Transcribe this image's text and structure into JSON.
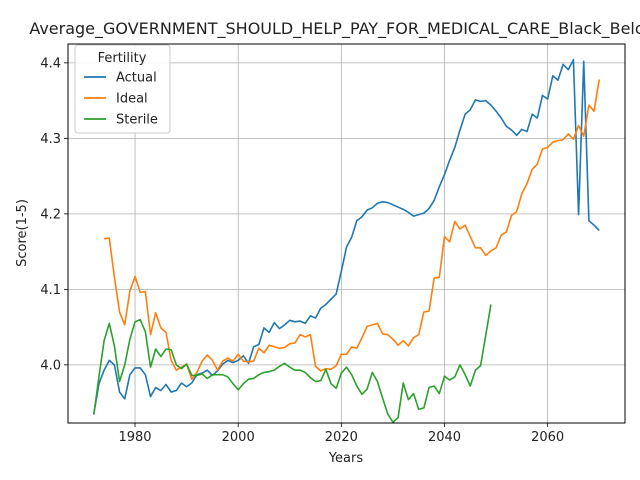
{
  "chart_data": {
    "type": "line",
    "title": "Average_GOVERNMENT_SHOULD_HELP_PAY_FOR_MEDICAL_CARE_Black_Below_A",
    "xlabel": "Years",
    "ylabel": "Score(1-5)",
    "xlim": [
      1967,
      2075
    ],
    "ylim": [
      3.923,
      4.425
    ],
    "xticks": [
      1980,
      2000,
      2020,
      2040,
      2060
    ],
    "yticks": [
      4.0,
      4.1,
      4.2,
      4.3,
      4.4
    ],
    "xtick_labels": [
      "1980",
      "2000",
      "2020",
      "2040",
      "2060"
    ],
    "ytick_labels": [
      "4.0",
      "4.1",
      "4.2",
      "4.3",
      "4.4"
    ],
    "grid": true,
    "legend": {
      "title": "Fertility",
      "position": "top-left"
    },
    "series": [
      {
        "name": "Actual",
        "color": "#1f77b4",
        "x": [
          1972,
          1973,
          1974,
          1975,
          1976,
          1977,
          1978,
          1979,
          1980,
          1981,
          1982,
          1983,
          1984,
          1985,
          1986,
          1987,
          1988,
          1989,
          1990,
          1991,
          1992,
          1993,
          1994,
          1995,
          1996,
          1997,
          1998,
          1999,
          2000,
          2001,
          2002,
          2003,
          2004,
          2005,
          2006,
          2007,
          2008,
          2009,
          2010,
          2011,
          2012,
          2013,
          2014,
          2015,
          2016,
          2017,
          2018,
          2019,
          2020,
          2021,
          2022,
          2023,
          2024,
          2025,
          2026,
          2027,
          2028,
          2029,
          2030,
          2031,
          2032,
          2033,
          2034,
          2035,
          2036,
          2037,
          2038,
          2039,
          2040,
          2041,
          2042,
          2043,
          2044,
          2045,
          2046,
          2047,
          2048,
          2049,
          2050,
          2051,
          2052,
          2053,
          2054,
          2055,
          2056,
          2057,
          2058,
          2059,
          2060,
          2061,
          2062,
          2063,
          2064,
          2065,
          2066,
          2067,
          2068,
          2069,
          2070
        ],
        "y": [
          3.935,
          3.975,
          3.993,
          4.006,
          4.0,
          3.964,
          3.955,
          3.987,
          3.996,
          3.996,
          3.987,
          3.958,
          3.97,
          3.966,
          3.974,
          3.964,
          3.966,
          3.976,
          3.971,
          3.976,
          3.987,
          3.989,
          3.993,
          3.986,
          3.992,
          4.001,
          4.006,
          4.003,
          4.006,
          4.012,
          4.002,
          4.024,
          4.027,
          4.049,
          4.043,
          4.056,
          4.048,
          4.053,
          4.059,
          4.057,
          4.058,
          4.055,
          4.065,
          4.062,
          4.075,
          4.08,
          4.087,
          4.094,
          4.124,
          4.156,
          4.169,
          4.191,
          4.196,
          4.205,
          4.208,
          4.214,
          4.216,
          4.215,
          4.212,
          4.209,
          4.206,
          4.202,
          4.197,
          4.199,
          4.201,
          4.207,
          4.218,
          4.236,
          4.252,
          4.271,
          4.288,
          4.311,
          4.332,
          4.338,
          4.351,
          4.349,
          4.35,
          4.344,
          4.336,
          4.327,
          4.316,
          4.311,
          4.304,
          4.312,
          4.309,
          4.332,
          4.327,
          4.357,
          4.352,
          4.383,
          4.377,
          4.398,
          4.391,
          4.404,
          4.199,
          4.402,
          4.191,
          4.185,
          4.178
        ]
      },
      {
        "name": "Ideal",
        "color": "#ff7f0e",
        "x": [
          1974,
          1975,
          1976,
          1977,
          1978,
          1979,
          1980,
          1981,
          1982,
          1983,
          1984,
          1985,
          1986,
          1987,
          1988,
          1989,
          1990,
          1991,
          1992,
          1993,
          1994,
          1995,
          1996,
          1997,
          1998,
          1999,
          2000,
          2001,
          2002,
          2003,
          2004,
          2005,
          2006,
          2007,
          2008,
          2009,
          2010,
          2011,
          2012,
          2013,
          2014,
          2015,
          2016,
          2017,
          2018,
          2019,
          2020,
          2021,
          2022,
          2023,
          2024,
          2025,
          2026,
          2027,
          2028,
          2029,
          2030,
          2031,
          2032,
          2033,
          2034,
          2035,
          2036,
          2037,
          2038,
          2039,
          2040,
          2041,
          2042,
          2043,
          2044,
          2045,
          2046,
          2047,
          2048,
          2049,
          2050,
          2051,
          2052,
          2053,
          2054,
          2055,
          2056,
          2057,
          2058,
          2059,
          2060,
          2061,
          2062,
          2063,
          2064,
          2065,
          2066,
          2067,
          2068,
          2069,
          2070
        ],
        "y": [
          4.167,
          4.168,
          4.116,
          4.07,
          4.053,
          4.098,
          4.117,
          4.096,
          4.097,
          4.04,
          4.069,
          4.049,
          4.043,
          4.006,
          3.993,
          3.997,
          4.001,
          3.981,
          3.99,
          4.005,
          4.013,
          4.006,
          3.993,
          4.005,
          4.009,
          4.005,
          4.014,
          4.005,
          4.004,
          4.005,
          4.022,
          4.016,
          4.026,
          4.024,
          4.022,
          4.023,
          4.028,
          4.029,
          4.04,
          4.037,
          4.04,
          3.998,
          3.992,
          3.995,
          3.994,
          3.999,
          4.014,
          4.014,
          4.024,
          4.022,
          4.036,
          4.051,
          4.053,
          4.055,
          4.041,
          4.04,
          4.034,
          4.026,
          4.032,
          4.025,
          4.036,
          4.04,
          4.07,
          4.071,
          4.115,
          4.116,
          4.17,
          4.163,
          4.19,
          4.18,
          4.185,
          4.17,
          4.155,
          4.155,
          4.145,
          4.151,
          4.155,
          4.172,
          4.176,
          4.198,
          4.203,
          4.227,
          4.24,
          4.259,
          4.266,
          4.286,
          4.288,
          4.295,
          4.297,
          4.298,
          4.306,
          4.299,
          4.317,
          4.303,
          4.344,
          4.336,
          4.378
        ]
      },
      {
        "name": "Sterile",
        "color": "#2ca02c",
        "x": [
          1972,
          1973,
          1974,
          1975,
          1976,
          1977,
          1978,
          1979,
          1980,
          1981,
          1982,
          1983,
          1984,
          1985,
          1986,
          1987,
          1988,
          1989,
          1990,
          1991,
          1992,
          1993,
          1994,
          1995,
          1996,
          1997,
          1998,
          1999,
          2000,
          2001,
          2002,
          2003,
          2004,
          2005,
          2006,
          2007,
          2008,
          2009,
          2010,
          2011,
          2012,
          2013,
          2014,
          2015,
          2016,
          2017,
          2018,
          2019,
          2020,
          2021,
          2022,
          2023,
          2024,
          2025,
          2026,
          2027,
          2028,
          2029,
          2030,
          2031,
          2032,
          2033,
          2034,
          2035,
          2036,
          2037,
          2038,
          2039,
          2040,
          2041,
          2042,
          2043,
          2044,
          2045,
          2046,
          2047,
          2048,
          2049
        ],
        "y": [
          3.934,
          3.984,
          4.032,
          4.055,
          4.025,
          3.978,
          4.0,
          4.034,
          4.057,
          4.06,
          4.044,
          3.997,
          4.021,
          4.011,
          4.021,
          4.02,
          4.0,
          3.995,
          4.001,
          3.986,
          3.986,
          3.988,
          3.982,
          3.987,
          3.987,
          3.987,
          3.984,
          3.975,
          3.967,
          3.975,
          3.981,
          3.982,
          3.987,
          3.99,
          3.991,
          3.993,
          3.998,
          4.002,
          3.997,
          3.993,
          3.993,
          3.99,
          3.983,
          3.978,
          3.979,
          3.994,
          3.975,
          3.969,
          3.989,
          3.997,
          3.987,
          3.972,
          3.961,
          3.968,
          3.99,
          3.978,
          3.956,
          3.935,
          3.924,
          3.93,
          3.976,
          3.954,
          3.962,
          3.941,
          3.943,
          3.97,
          3.972,
          3.962,
          3.985,
          3.98,
          3.984,
          4.0,
          3.987,
          3.972,
          3.993,
          3.999,
          4.039,
          4.08
        ]
      }
    ]
  }
}
